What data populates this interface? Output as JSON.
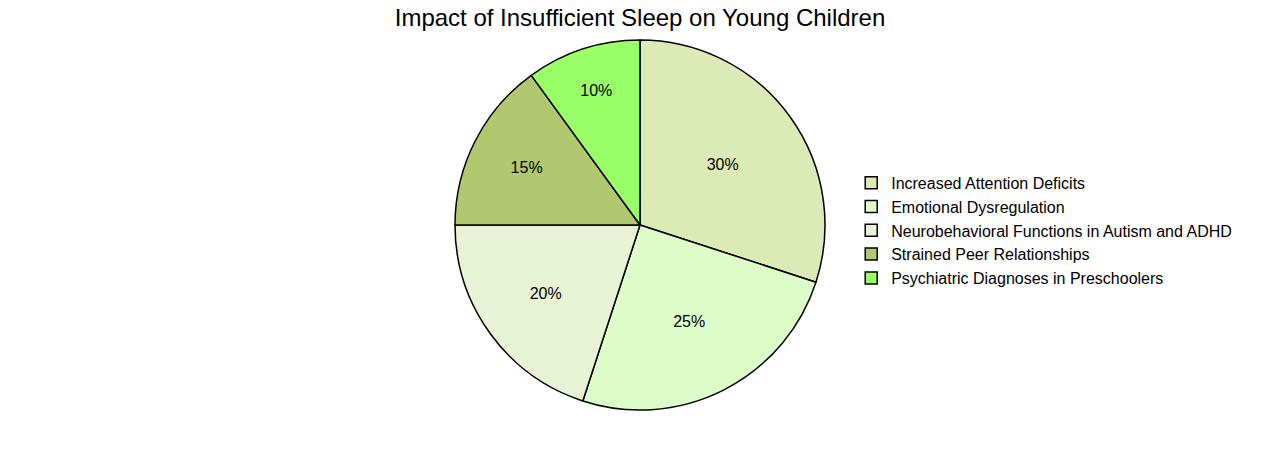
{
  "chart_data": {
    "type": "pie",
    "title": "Impact of Insufficient Sleep on Young Children",
    "categories": [
      "Increased Attention Deficits",
      "Emotional Dysregulation",
      "Neurobehavioral Functions in Autism and ADHD",
      "Strained Peer Relationships",
      "Psychiatric Diagnoses in Preschoolers"
    ],
    "values": [
      30,
      25,
      20,
      15,
      10
    ],
    "value_labels": [
      "30%",
      "25%",
      "20%",
      "15%",
      "10%"
    ],
    "colors": [
      "#dcebb6",
      "#dcfdc8",
      "#e8f2d4",
      "#b0c96e",
      "#99ff66"
    ],
    "data_labels": true,
    "legend": "right"
  }
}
